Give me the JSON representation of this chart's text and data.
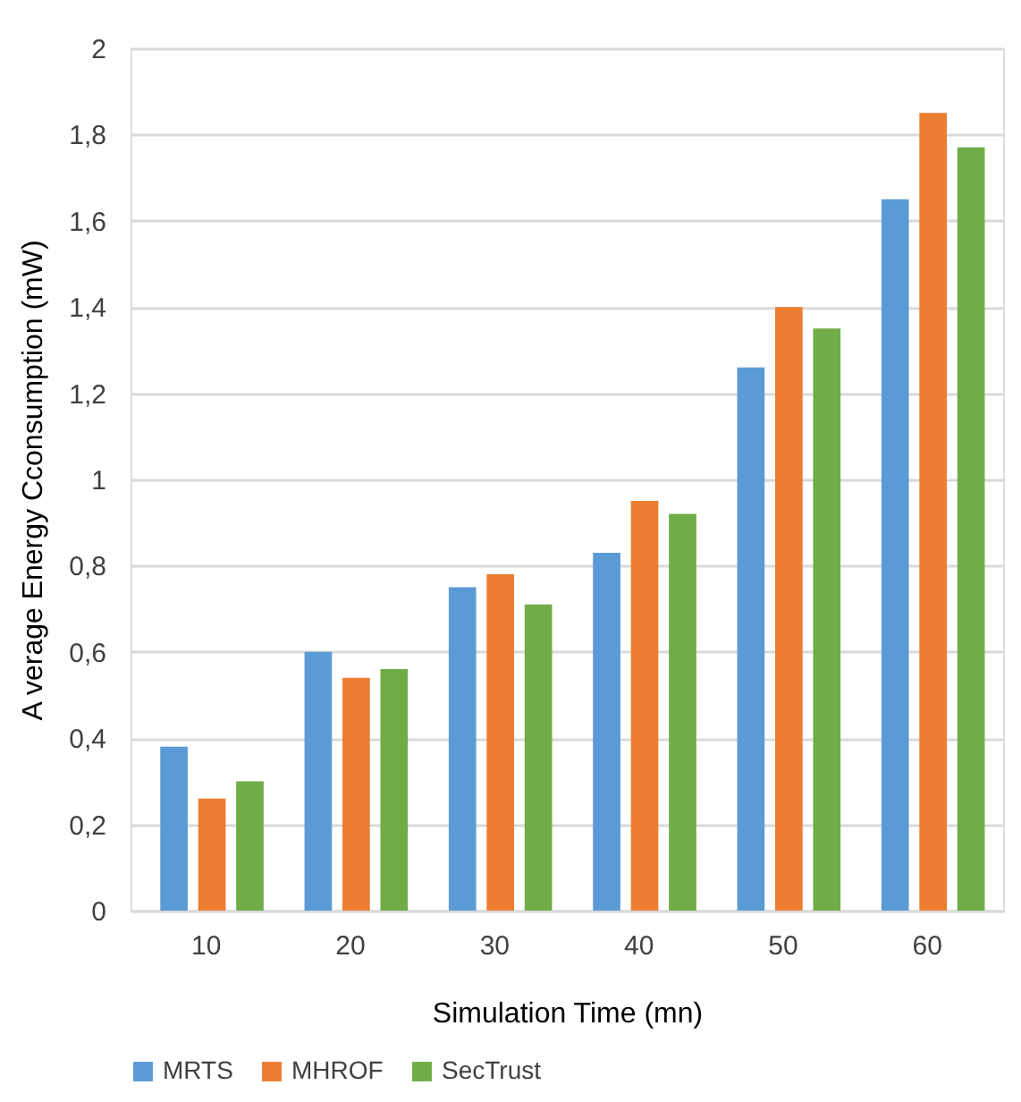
{
  "chart_data": {
    "type": "bar",
    "xlabel": "Simulation Time (mn)",
    "ylabel": "A verage Energy Cconsumption  (mW)",
    "categories": [
      "10",
      "20",
      "30",
      "40",
      "50",
      "60"
    ],
    "series": [
      {
        "name": "MRTS",
        "color": "#5b9bd5",
        "values": [
          0.38,
          0.6,
          0.75,
          0.83,
          1.26,
          1.65
        ]
      },
      {
        "name": "MHROF",
        "color": "#ed7d31",
        "values": [
          0.26,
          0.54,
          0.78,
          0.95,
          1.4,
          1.85
        ]
      },
      {
        "name": "SecTrust",
        "color": "#70ad47",
        "values": [
          0.3,
          0.56,
          0.71,
          0.92,
          1.35,
          1.77
        ]
      }
    ],
    "ylim": [
      0,
      2
    ],
    "yticks": [
      0,
      {
        "value": 0.2,
        "label": "0,2"
      },
      {
        "value": 0.4,
        "label": "0,4"
      },
      {
        "value": 0.6,
        "label": "0,6"
      },
      {
        "value": 0.8,
        "label": "0,8"
      },
      1,
      {
        "value": 1.2,
        "label": "1,2"
      },
      {
        "value": 1.4,
        "label": "1,4"
      },
      {
        "value": 1.6,
        "label": "1,6"
      },
      {
        "value": 1.8,
        "label": "1,8"
      },
      2
    ],
    "grid": "y",
    "legend": "bottom"
  }
}
